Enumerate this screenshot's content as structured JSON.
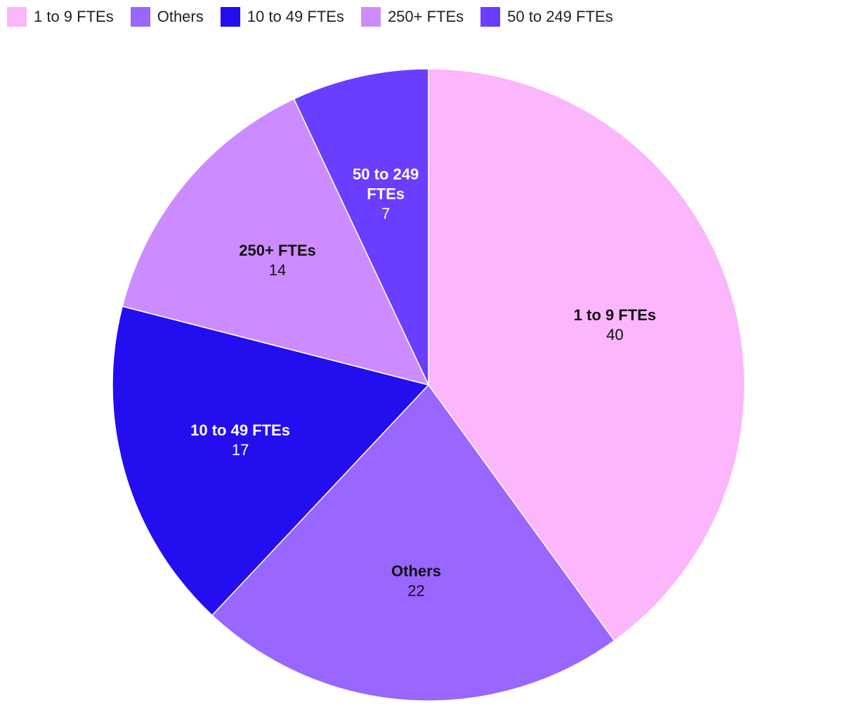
{
  "chart_data": {
    "type": "pie",
    "title": "",
    "legend_position": "top-left",
    "slices": [
      {
        "label": "1 to 9 FTEs",
        "label_lines": [
          "1 to 9 FTEs"
        ],
        "value": 40,
        "color": "#FBB6FC",
        "text_color": "#111111"
      },
      {
        "label": "Others",
        "label_lines": [
          "Others"
        ],
        "value": 22,
        "color": "#9966FF",
        "text_color": "#111111"
      },
      {
        "label": "10 to 49 FTEs",
        "label_lines": [
          "10 to 49 FTEs"
        ],
        "value": 17,
        "color": "#230EF0",
        "text_color": "#FFFFFF"
      },
      {
        "label": "250+ FTEs",
        "label_lines": [
          "250+ FTEs"
        ],
        "value": 14,
        "color": "#CC8CFF",
        "text_color": "#111111"
      },
      {
        "label": "50 to 249 FTEs",
        "label_lines": [
          "50 to 249",
          "FTEs"
        ],
        "value": 7,
        "color": "#6A3DFF",
        "text_color": "#FFFFFF"
      }
    ]
  }
}
